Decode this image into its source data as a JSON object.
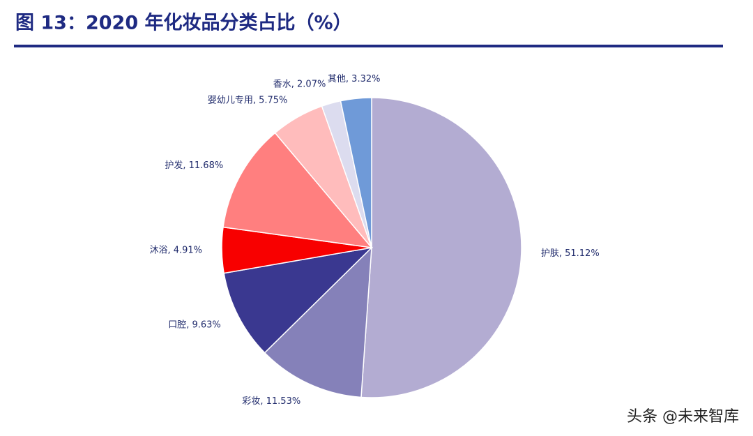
{
  "chart_data": {
    "type": "pie",
    "title": "图 13：2020 年化妆品分类占比（%）",
    "values": [
      51.12,
      11.53,
      9.63,
      4.91,
      11.68,
      5.75,
      2.07,
      3.32
    ],
    "value_labels": [
      "护肤, 51.12%",
      "彩妆, 11.53%",
      "口腔, 9.63%",
      "沐浴, 4.91%",
      "护发, 11.68%",
      "婴幼儿专用, 5.75%",
      "香水, 2.07%",
      "其他, 3.32%"
    ],
    "colors": [
      "#b3acd2",
      "#8581b9",
      "#3a3890",
      "#f80000",
      "#ff7f7f",
      "#ffbcbc",
      "#dcdcef",
      "#6f9ad8"
    ]
  },
  "watermark": "头条 @未来智库"
}
